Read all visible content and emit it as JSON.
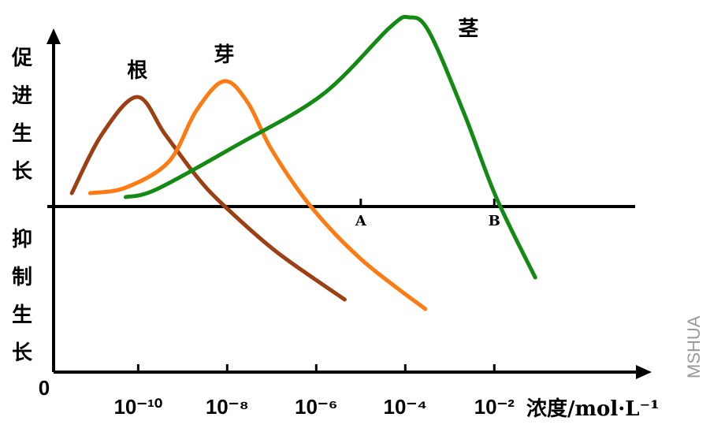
{
  "chart_data": {
    "type": "line",
    "y_label_top": "促进生长",
    "y_label_bottom": "抑制生长",
    "x_label": "浓度/mol·L⁻¹",
    "origin_label": "0",
    "watermark": "MSHUA",
    "xlim": [
      -11.9,
      1.5
    ],
    "ylim": [
      -2.1,
      2.5
    ],
    "xticks": [
      {
        "value": -10,
        "label": "10⁻¹⁰"
      },
      {
        "value": -8,
        "label": "10⁻⁸"
      },
      {
        "value": -6,
        "label": "10⁻⁶"
      },
      {
        "value": -4,
        "label": "10⁻⁴"
      },
      {
        "value": -2,
        "label": "10⁻²"
      }
    ],
    "annotations": [
      {
        "text": "A",
        "x": -5
      },
      {
        "text": "B",
        "x": -2
      }
    ],
    "series": [
      {
        "name": "根",
        "color": "#9c3f12",
        "x": [
          -11.49,
          -10.81,
          -10.02,
          -9.4,
          -8.67,
          -8.05,
          -6.88,
          -5.36
        ],
        "values": [
          0.17,
          0.92,
          1.39,
          0.92,
          0.37,
          0,
          -0.58,
          -1.18
        ]
      },
      {
        "name": "芽",
        "color": "#ff7a10",
        "x": [
          -11.08,
          -10.28,
          -9.31,
          -8.69,
          -8.07,
          -7.54,
          -7.0,
          -6.12,
          -4.97,
          -3.55
        ],
        "values": [
          0.17,
          0.24,
          0.57,
          1.22,
          1.59,
          1.32,
          0.72,
          0,
          -0.68,
          -1.3
        ]
      },
      {
        "name": "茎",
        "color": "#138a13",
        "x": [
          -10.28,
          -9.58,
          -7.81,
          -5.86,
          -4.35,
          -3.91,
          -3.47,
          -2.67,
          -1.96,
          -1.08
        ],
        "values": [
          0.12,
          0.22,
          0.77,
          1.42,
          2.27,
          2.4,
          2.22,
          1.17,
          0.12,
          -0.9
        ]
      }
    ]
  }
}
